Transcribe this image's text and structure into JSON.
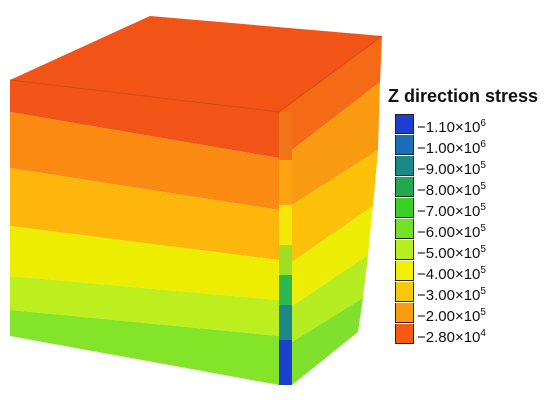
{
  "legend": {
    "title": "Z direction stress",
    "entries": [
      {
        "label": "−1.10×10",
        "exp": "6",
        "color": "#1c3fd0"
      },
      {
        "label": "−1.00×10",
        "exp": "6",
        "color": "#1a6db8"
      },
      {
        "label": "−9.00×10",
        "exp": "5",
        "color": "#1b8a86"
      },
      {
        "label": "−8.00×10",
        "exp": "5",
        "color": "#22a84e"
      },
      {
        "label": "−7.00×10",
        "exp": "5",
        "color": "#3ad126"
      },
      {
        "label": "−6.00×10",
        "exp": "5",
        "color": "#74e028"
      },
      {
        "label": "−5.00×10",
        "exp": "5",
        "color": "#b6ee1e"
      },
      {
        "label": "−4.00×10",
        "exp": "5",
        "color": "#f0f000"
      },
      {
        "label": "−3.00×10",
        "exp": "5",
        "color": "#fcc708"
      },
      {
        "label": "−2.00×10",
        "exp": "5",
        "color": "#fd9a0e"
      },
      {
        "label": "−2.80×10",
        "exp": "4",
        "color": "#f85a12"
      }
    ]
  },
  "cube": {
    "top_color": "#f25417",
    "front_bands": [
      "#f25417",
      "#fa8a12",
      "#fdb60c",
      "#eced00",
      "#bdef1f",
      "#84e42a"
    ],
    "side_bands": [
      "#f56a16",
      "#fa9a10",
      "#fec10a",
      "#ecef05",
      "#b6ec22",
      "#7fe12c"
    ],
    "column_colors": [
      "#f07418",
      "#fca40f",
      "#f4e807",
      "#9cdf25",
      "#2bb851",
      "#1b8a86",
      "#1c3fd0"
    ]
  }
}
